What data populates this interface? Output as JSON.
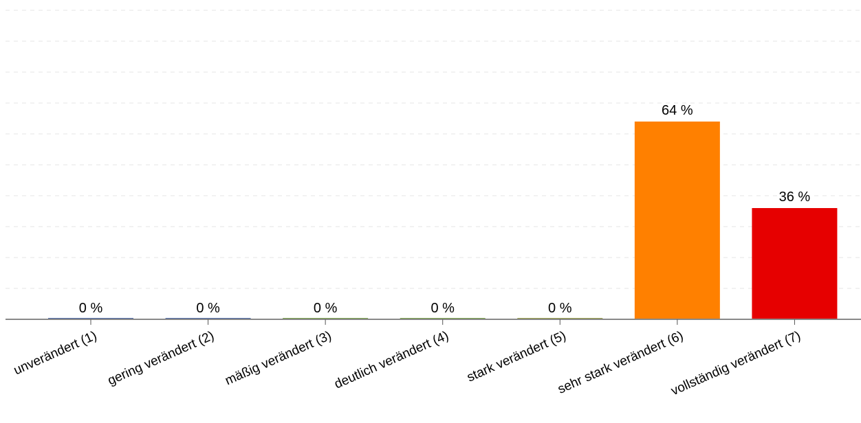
{
  "chart_data": {
    "type": "bar",
    "title": "",
    "xlabel": "",
    "ylabel": "",
    "ylim": [
      0,
      100
    ],
    "grid": true,
    "legend": "none",
    "categories": [
      "unverändert (1)",
      "gering verändert (2)",
      "mäßig verändert (3)",
      "deutlich verändert (4)",
      "stark verändert (5)",
      "sehr stark verändert (6)",
      "vollständig verändert (7)"
    ],
    "values": [
      0,
      0,
      0,
      0,
      0,
      64,
      36
    ],
    "value_labels": [
      "0 %",
      "0 %",
      "0 %",
      "0 %",
      "0 %",
      "64 %",
      "36 %"
    ],
    "colors": [
      "#4e6aa8",
      "#4e6aa8",
      "#7aa34a",
      "#7aa34a",
      "#9aa04a",
      "#ff8000",
      "#e60000"
    ]
  }
}
